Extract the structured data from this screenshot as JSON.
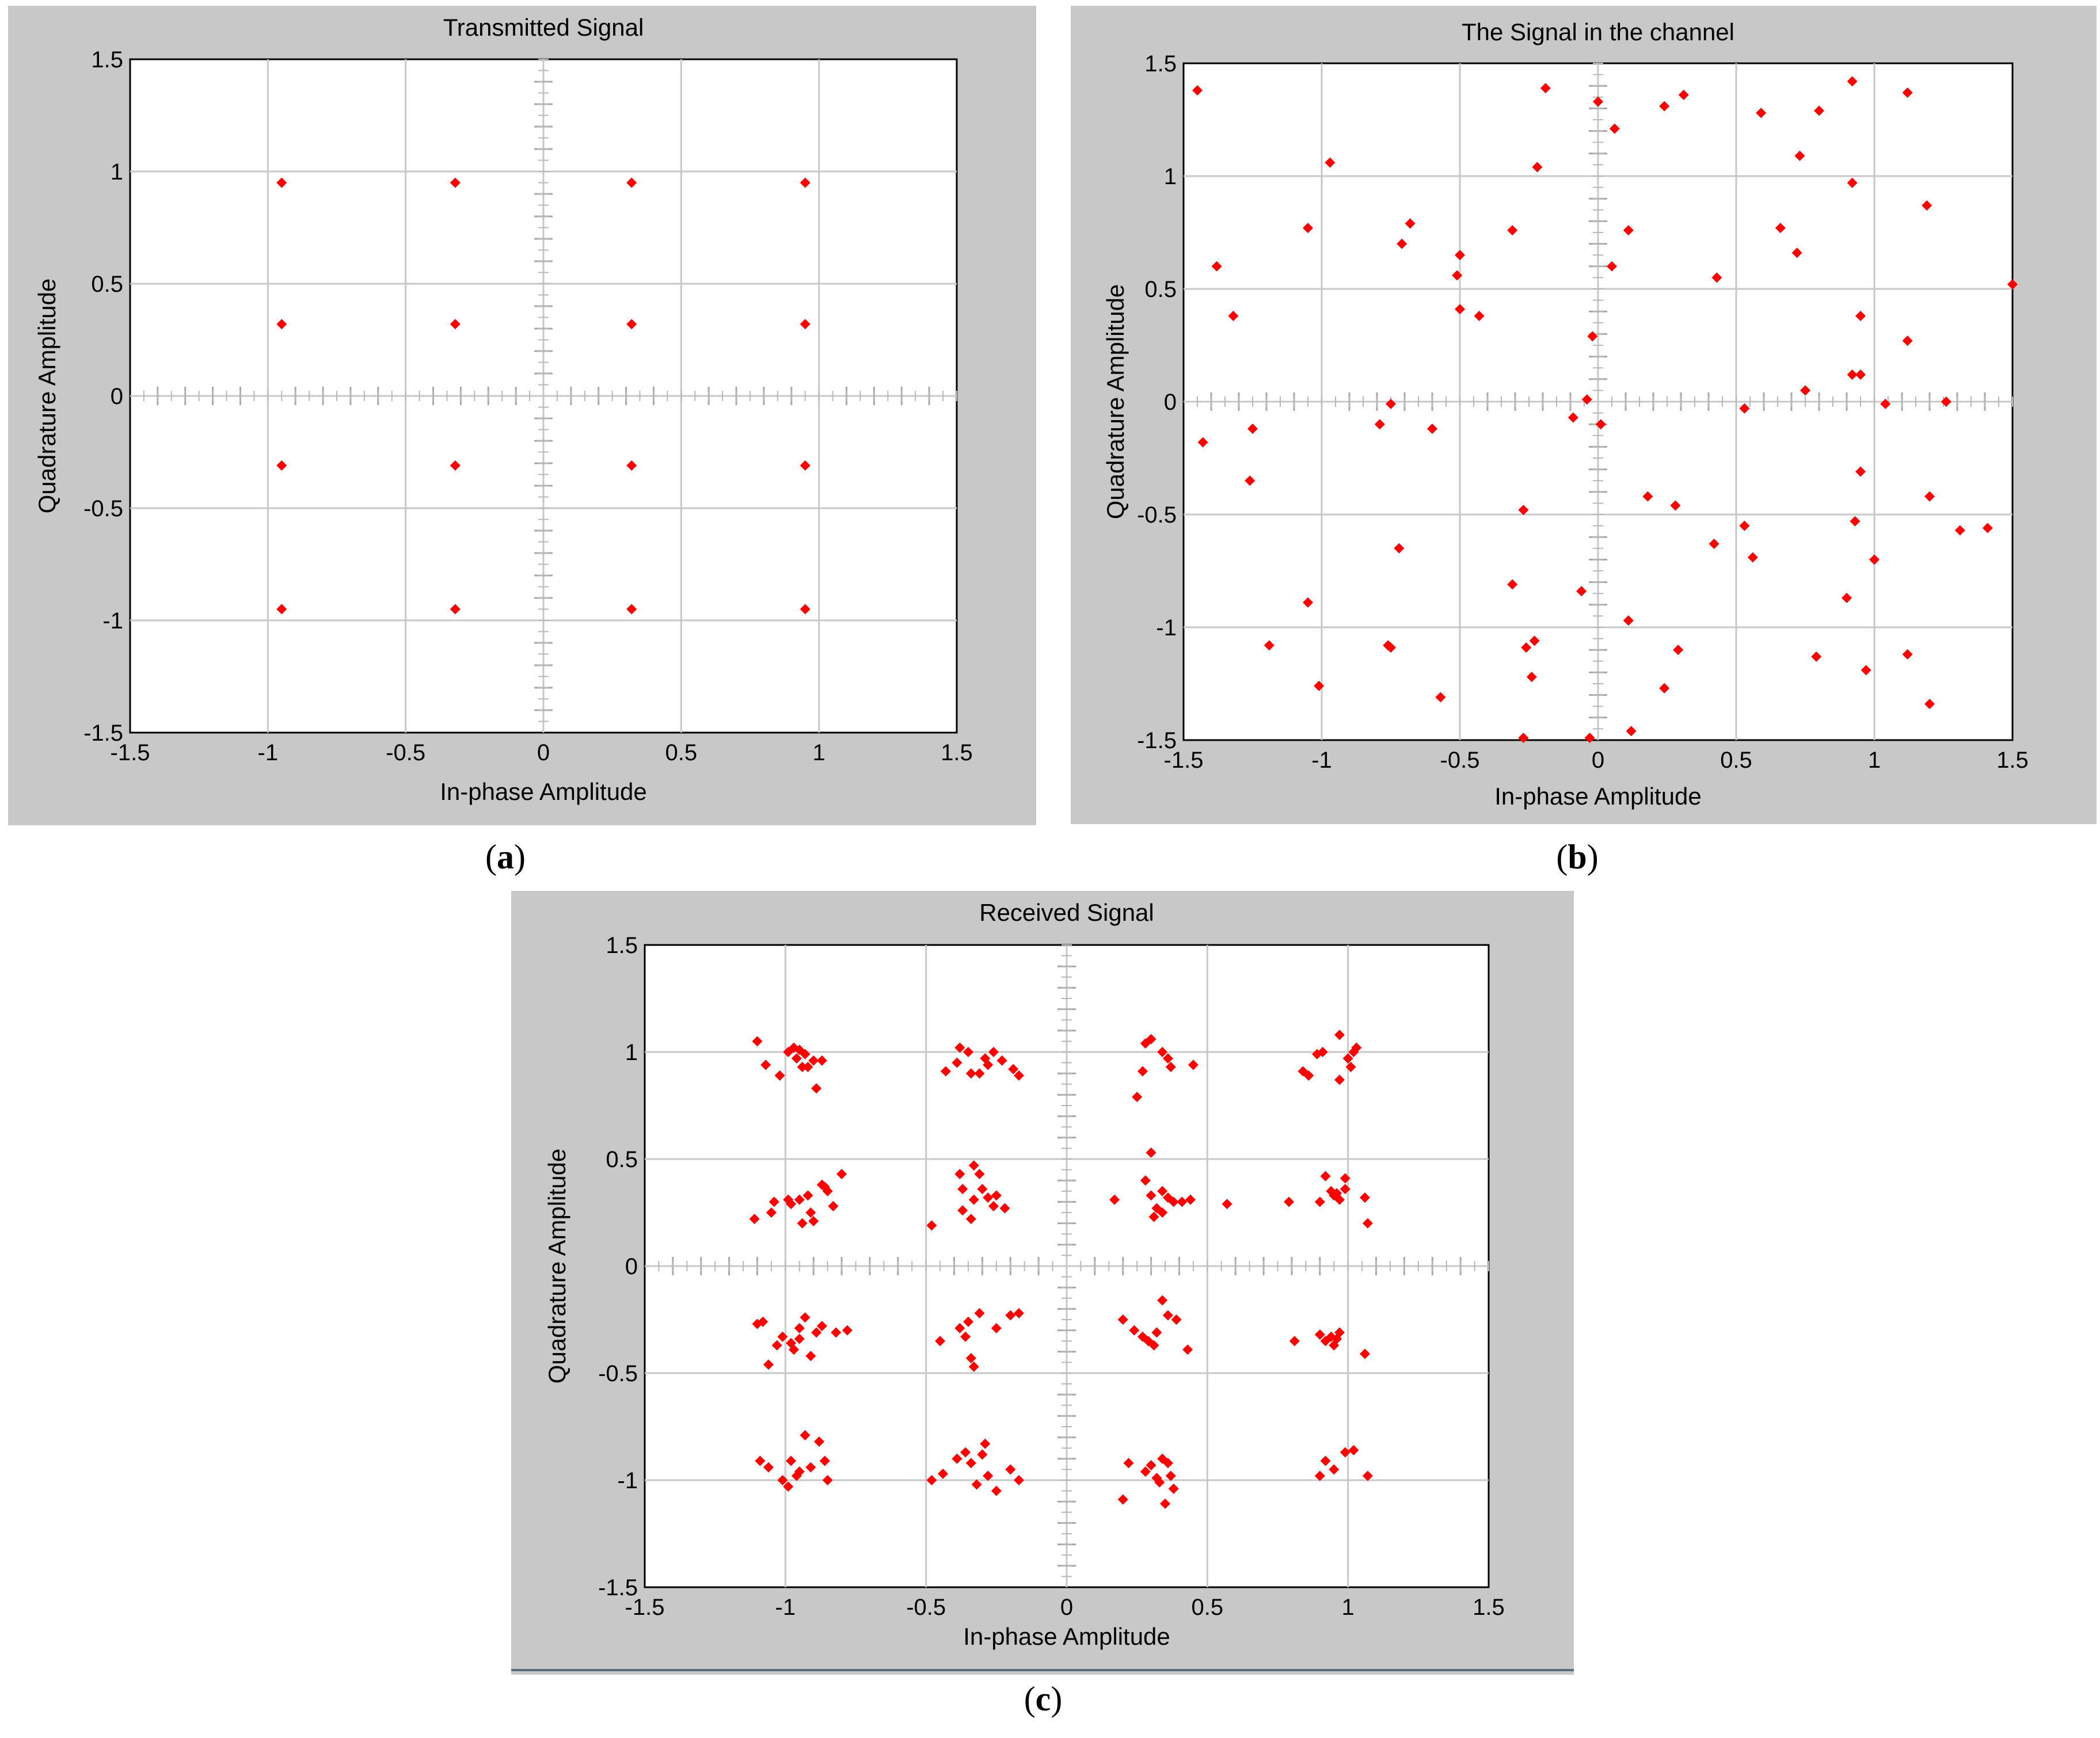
{
  "captions": {
    "a": "a",
    "b": "b",
    "c": "c"
  },
  "colors": {
    "marker": "#ff0000",
    "panel_bg": "#c8c8c8",
    "grid": "#c8c8c8",
    "plot_bg": "#ffffff"
  },
  "chart_data": [
    {
      "id": "a",
      "type": "scatter",
      "title": "Transmitted Signal",
      "xlabel": "In-phase Amplitude",
      "ylabel": "Quadrature Amplitude",
      "xlim": [
        -1.5,
        1.5
      ],
      "ylim": [
        -1.5,
        1.5
      ],
      "xticks": [
        "-1.5",
        "-1",
        "-0.5",
        "0",
        "0.5",
        "1",
        "1.5"
      ],
      "yticks": [
        "-1.5",
        "-1",
        "-0.5",
        "0",
        "0.5",
        "1",
        "1.5"
      ],
      "grid": true,
      "points": [
        [
          -0.95,
          0.95
        ],
        [
          -0.32,
          0.95
        ],
        [
          0.32,
          0.95
        ],
        [
          0.95,
          0.95
        ],
        [
          -0.95,
          0.32
        ],
        [
          -0.32,
          0.32
        ],
        [
          0.32,
          0.32
        ],
        [
          0.95,
          0.32
        ],
        [
          -0.95,
          -0.31
        ],
        [
          -0.32,
          -0.31
        ],
        [
          0.32,
          -0.31
        ],
        [
          0.95,
          -0.31
        ],
        [
          -0.95,
          -0.95
        ],
        [
          -0.32,
          -0.95
        ],
        [
          0.32,
          -0.95
        ],
        [
          0.95,
          -0.95
        ]
      ]
    },
    {
      "id": "b",
      "type": "scatter",
      "title": "The Signal in the channel",
      "xlabel": "In-phase Amplitude",
      "ylabel": "Quadrature Amplitude",
      "xlim": [
        -1.5,
        1.5
      ],
      "ylim": [
        -1.5,
        1.5
      ],
      "xticks": [
        "-1.5",
        "-1",
        "-0.5",
        "0",
        "0.5",
        "1",
        "1.5"
      ],
      "yticks": [
        "-1.5",
        "-1",
        "-0.5",
        "0",
        "0.5",
        "1",
        "1.5"
      ],
      "grid": true,
      "points": [
        [
          -1.45,
          1.38
        ],
        [
          -1.38,
          0.6
        ],
        [
          -1.32,
          0.38
        ],
        [
          -1.43,
          -0.18
        ],
        [
          -1.25,
          -0.12
        ],
        [
          -1.26,
          -0.35
        ],
        [
          -1.19,
          -1.08
        ],
        [
          -1.05,
          0.77
        ],
        [
          -0.97,
          1.06
        ],
        [
          -1.05,
          -0.89
        ],
        [
          -1.01,
          -1.26
        ],
        [
          -0.75,
          -0.01
        ],
        [
          -0.79,
          -0.1
        ],
        [
          -0.68,
          0.79
        ],
        [
          -0.71,
          0.7
        ],
        [
          -0.6,
          -0.12
        ],
        [
          -0.72,
          -0.65
        ],
        [
          -0.76,
          -1.08
        ],
        [
          -0.75,
          -1.09
        ],
        [
          -0.57,
          -1.31
        ],
        [
          -0.5,
          0.65
        ],
        [
          -0.51,
          0.56
        ],
        [
          -0.5,
          0.41
        ],
        [
          -0.43,
          0.38
        ],
        [
          -0.31,
          0.76
        ],
        [
          -0.22,
          1.04
        ],
        [
          -0.19,
          1.39
        ],
        [
          -0.27,
          -0.48
        ],
        [
          -0.31,
          -0.81
        ],
        [
          -0.26,
          -1.09
        ],
        [
          -0.23,
          -1.06
        ],
        [
          -0.24,
          -1.22
        ],
        [
          -0.27,
          -1.49
        ],
        [
          -0.04,
          0.01
        ],
        [
          -0.09,
          -0.07
        ],
        [
          -0.06,
          -0.84
        ],
        [
          -0.03,
          -1.49
        ],
        [
          0,
          1.33
        ],
        [
          0.06,
          1.21
        ],
        [
          -0.02,
          0.29
        ],
        [
          0.05,
          0.6
        ],
        [
          0.11,
          0.76
        ],
        [
          0.01,
          -0.1
        ],
        [
          0.18,
          -0.42
        ],
        [
          0.11,
          -0.97
        ],
        [
          0.12,
          -1.46
        ],
        [
          0.24,
          1.31
        ],
        [
          0.31,
          1.36
        ],
        [
          0.28,
          -0.46
        ],
        [
          0.24,
          -1.27
        ],
        [
          0.29,
          -1.1
        ],
        [
          0.43,
          0.55
        ],
        [
          0.42,
          -0.63
        ],
        [
          0.53,
          -0.03
        ],
        [
          0.53,
          -0.55
        ],
        [
          0.56,
          -0.69
        ],
        [
          0.59,
          1.28
        ],
        [
          0.66,
          0.77
        ],
        [
          0.73,
          1.09
        ],
        [
          0.72,
          0.66
        ],
        [
          0.75,
          0.05
        ],
        [
          0.8,
          1.29
        ],
        [
          0.79,
          -1.13
        ],
        [
          0.92,
          1.42
        ],
        [
          0.92,
          0.97
        ],
        [
          0.95,
          0.38
        ],
        [
          0.92,
          0.12
        ],
        [
          0.95,
          0.12
        ],
        [
          0.95,
          -0.31
        ],
        [
          0.93,
          -0.53
        ],
        [
          0.9,
          -0.87
        ],
        [
          0.97,
          -1.19
        ],
        [
          1.12,
          1.37
        ],
        [
          1.19,
          0.87
        ],
        [
          1.12,
          0.27
        ],
        [
          1.04,
          -0.01
        ],
        [
          1.0,
          -0.7
        ],
        [
          1.2,
          -0.42
        ],
        [
          1.12,
          -1.12
        ],
        [
          1.2,
          -1.34
        ],
        [
          1.26,
          0
        ],
        [
          1.31,
          -0.57
        ],
        [
          1.41,
          -0.56
        ],
        [
          1.5,
          0.52
        ]
      ]
    },
    {
      "id": "c",
      "type": "scatter",
      "title": "Received Signal",
      "xlabel": "In-phase Amplitude",
      "ylabel": "Quadrature Amplitude",
      "xlim": [
        -1.5,
        1.5
      ],
      "ylim": [
        -1.5,
        1.5
      ],
      "xticks": [
        "-1.5",
        "-1",
        "-0.5",
        "0",
        "0.5",
        "1",
        "1.5"
      ],
      "yticks": [
        "-1.5",
        "-1",
        "-0.5",
        "0",
        "0.5",
        "1",
        "1.5"
      ],
      "grid": true,
      "cluster_centers": [
        [
          -0.95,
          0.95
        ],
        [
          -0.32,
          0.95
        ],
        [
          0.32,
          0.95
        ],
        [
          0.95,
          0.95
        ],
        [
          -0.95,
          0.32
        ],
        [
          -0.32,
          0.32
        ],
        [
          0.32,
          0.32
        ],
        [
          0.95,
          0.32
        ],
        [
          -0.95,
          -0.32
        ],
        [
          -0.32,
          -0.32
        ],
        [
          0.32,
          -0.32
        ],
        [
          0.95,
          -0.32
        ],
        [
          -0.95,
          -0.95
        ],
        [
          -0.32,
          -0.95
        ],
        [
          0.32,
          -0.95
        ],
        [
          0.95,
          -0.95
        ]
      ],
      "points": [
        [
          -1.1,
          1.05
        ],
        [
          -1.07,
          0.94
        ],
        [
          -1.02,
          0.89
        ],
        [
          -0.99,
          1.0
        ],
        [
          -0.97,
          1.02
        ],
        [
          -0.95,
          1.01
        ],
        [
          -0.96,
          0.97
        ],
        [
          -0.93,
          0.99
        ],
        [
          -0.9,
          0.96
        ],
        [
          -0.92,
          0.93
        ],
        [
          -0.87,
          0.96
        ],
        [
          -0.89,
          0.83
        ],
        [
          -0.94,
          0.93
        ],
        [
          -0.38,
          1.02
        ],
        [
          -0.35,
          1.0
        ],
        [
          -0.31,
          0.9
        ],
        [
          -0.29,
          0.97
        ],
        [
          -0.26,
          1.0
        ],
        [
          -0.23,
          0.96
        ],
        [
          -0.19,
          0.92
        ],
        [
          -0.17,
          0.89
        ],
        [
          -0.43,
          0.91
        ],
        [
          -0.39,
          0.95
        ],
        [
          -0.34,
          0.9
        ],
        [
          -0.28,
          0.94
        ],
        [
          0.28,
          1.04
        ],
        [
          0.3,
          1.06
        ],
        [
          0.34,
          1.0
        ],
        [
          0.36,
          0.97
        ],
        [
          0.27,
          0.91
        ],
        [
          0.25,
          0.79
        ],
        [
          0.37,
          0.93
        ],
        [
          0.45,
          0.94
        ],
        [
          0.84,
          0.91
        ],
        [
          0.89,
          0.99
        ],
        [
          0.91,
          1.0
        ],
        [
          0.97,
          1.08
        ],
        [
          1.0,
          0.97
        ],
        [
          1.02,
          1.0
        ],
        [
          1.03,
          1.02
        ],
        [
          0.97,
          0.87
        ],
        [
          0.86,
          0.89
        ],
        [
          1.01,
          0.93
        ],
        [
          -1.11,
          0.22
        ],
        [
          -1.05,
          0.25
        ],
        [
          -1.04,
          0.3
        ],
        [
          -0.99,
          0.31
        ],
        [
          -0.98,
          0.29
        ],
        [
          -0.95,
          0.31
        ],
        [
          -0.92,
          0.33
        ],
        [
          -0.91,
          0.25
        ],
        [
          -0.9,
          0.21
        ],
        [
          -0.87,
          0.38
        ],
        [
          -0.86,
          0.37
        ],
        [
          -0.85,
          0.35
        ],
        [
          -0.83,
          0.28
        ],
        [
          -0.8,
          0.43
        ],
        [
          -0.94,
          0.2
        ],
        [
          -0.48,
          0.19
        ],
        [
          -0.38,
          0.43
        ],
        [
          -0.37,
          0.36
        ],
        [
          -0.33,
          0.47
        ],
        [
          -0.33,
          0.31
        ],
        [
          -0.3,
          0.36
        ],
        [
          -0.28,
          0.32
        ],
        [
          -0.26,
          0.28
        ],
        [
          -0.25,
          0.33
        ],
        [
          -0.22,
          0.27
        ],
        [
          -0.37,
          0.26
        ],
        [
          -0.34,
          0.22
        ],
        [
          -0.31,
          0.43
        ],
        [
          0.17,
          0.31
        ],
        [
          0.28,
          0.4
        ],
        [
          0.3,
          0.53
        ],
        [
          0.3,
          0.33
        ],
        [
          0.32,
          0.27
        ],
        [
          0.34,
          0.25
        ],
        [
          0.36,
          0.32
        ],
        [
          0.38,
          0.3
        ],
        [
          0.41,
          0.3
        ],
        [
          0.44,
          0.31
        ],
        [
          0.31,
          0.23
        ],
        [
          0.34,
          0.35
        ],
        [
          0.57,
          0.29
        ],
        [
          0.79,
          0.3
        ],
        [
          0.9,
          0.3
        ],
        [
          0.92,
          0.42
        ],
        [
          0.94,
          0.35
        ],
        [
          0.96,
          0.34
        ],
        [
          0.97,
          0.31
        ],
        [
          0.99,
          0.41
        ],
        [
          0.99,
          0.36
        ],
        [
          1.06,
          0.32
        ],
        [
          1.07,
          0.2
        ],
        [
          0.95,
          0.33
        ],
        [
          -1.1,
          -0.27
        ],
        [
          -1.08,
          -0.26
        ],
        [
          -1.06,
          -0.46
        ],
        [
          -1.03,
          -0.37
        ],
        [
          -1.01,
          -0.33
        ],
        [
          -0.98,
          -0.36
        ],
        [
          -0.97,
          -0.39
        ],
        [
          -0.95,
          -0.34
        ],
        [
          -0.93,
          -0.24
        ],
        [
          -0.91,
          -0.42
        ],
        [
          -0.89,
          -0.31
        ],
        [
          -0.87,
          -0.28
        ],
        [
          -0.82,
          -0.31
        ],
        [
          -0.78,
          -0.3
        ],
        [
          -0.95,
          -0.29
        ],
        [
          -0.45,
          -0.35
        ],
        [
          -0.38,
          -0.29
        ],
        [
          -0.36,
          -0.33
        ],
        [
          -0.33,
          -0.47
        ],
        [
          -0.34,
          -0.43
        ],
        [
          -0.31,
          -0.22
        ],
        [
          -0.25,
          -0.29
        ],
        [
          -0.2,
          -0.23
        ],
        [
          -0.17,
          -0.22
        ],
        [
          -0.35,
          -0.26
        ],
        [
          0.2,
          -0.25
        ],
        [
          0.24,
          -0.3
        ],
        [
          0.27,
          -0.33
        ],
        [
          0.29,
          -0.35
        ],
        [
          0.32,
          -0.31
        ],
        [
          0.34,
          -0.16
        ],
        [
          0.36,
          -0.23
        ],
        [
          0.39,
          -0.25
        ],
        [
          0.43,
          -0.39
        ],
        [
          0.31,
          -0.37
        ],
        [
          0.81,
          -0.35
        ],
        [
          0.9,
          -0.32
        ],
        [
          0.92,
          -0.35
        ],
        [
          0.94,
          -0.33
        ],
        [
          0.95,
          -0.37
        ],
        [
          0.97,
          -0.31
        ],
        [
          1.06,
          -0.41
        ],
        [
          0.96,
          -0.34
        ],
        [
          -1.09,
          -0.91
        ],
        [
          -1.06,
          -0.94
        ],
        [
          -1.01,
          -1.0
        ],
        [
          -0.99,
          -1.03
        ],
        [
          -0.98,
          -0.91
        ],
        [
          -0.96,
          -0.98
        ],
        [
          -0.93,
          -0.79
        ],
        [
          -0.91,
          -0.94
        ],
        [
          -0.88,
          -0.82
        ],
        [
          -0.86,
          -0.91
        ],
        [
          -0.85,
          -1.0
        ],
        [
          -0.95,
          -0.96
        ],
        [
          -0.48,
          -1.0
        ],
        [
          -0.44,
          -0.97
        ],
        [
          -0.39,
          -0.9
        ],
        [
          -0.36,
          -0.87
        ],
        [
          -0.34,
          -0.92
        ],
        [
          -0.32,
          -1.02
        ],
        [
          -0.29,
          -0.83
        ],
        [
          -0.28,
          -0.98
        ],
        [
          -0.25,
          -1.05
        ],
        [
          -0.2,
          -0.95
        ],
        [
          -0.17,
          -1.0
        ],
        [
          -0.3,
          -0.88
        ],
        [
          0.22,
          -0.92
        ],
        [
          0.2,
          -1.09
        ],
        [
          0.28,
          -0.96
        ],
        [
          0.3,
          -0.93
        ],
        [
          0.32,
          -0.99
        ],
        [
          0.34,
          -0.9
        ],
        [
          0.36,
          -0.92
        ],
        [
          0.37,
          -0.98
        ],
        [
          0.38,
          -1.04
        ],
        [
          0.35,
          -1.11
        ],
        [
          0.33,
          -1.01
        ],
        [
          0.9,
          -0.98
        ],
        [
          0.92,
          -0.91
        ],
        [
          0.95,
          -0.95
        ],
        [
          0.99,
          -0.87
        ],
        [
          1.02,
          -0.86
        ],
        [
          1.07,
          -0.98
        ]
      ]
    }
  ],
  "panels": [
    {
      "title": "Transmitted Signal",
      "xlabel": "In-phase Amplitude",
      "ylabel": "Quadrature Amplitude"
    },
    {
      "title": "The Signal in the channel",
      "xlabel": "In-phase Amplitude",
      "ylabel": "Quadrature Amplitude"
    },
    {
      "title": "Received Signal",
      "xlabel": "In-phase Amplitude",
      "ylabel": "Quadrature Amplitude"
    }
  ]
}
